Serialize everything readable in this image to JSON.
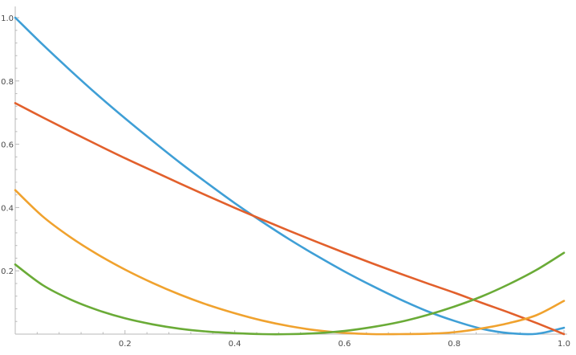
{
  "chart_data": {
    "type": "line",
    "title": "",
    "xlabel": "",
    "ylabel": "",
    "xlim": [
      0,
      1
    ],
    "ylim": [
      0,
      1
    ],
    "grid": false,
    "legend": "none",
    "x_ticks": [
      {
        "value": 0.2,
        "label": "0.2"
      },
      {
        "value": 0.4,
        "label": "0.4"
      },
      {
        "value": 0.6,
        "label": "0.6"
      },
      {
        "value": 0.8,
        "label": "0.8"
      },
      {
        "value": 1.0,
        "label": "1.0"
      }
    ],
    "y_ticks": [
      {
        "value": 0.2,
        "label": "0.2"
      },
      {
        "value": 0.4,
        "label": "0.4"
      },
      {
        "value": 0.6,
        "label": "0.6"
      },
      {
        "value": 0.8,
        "label": "0.8"
      },
      {
        "value": 1.0,
        "label": "1.0"
      }
    ],
    "x": [
      0,
      0.05,
      0.1,
      0.15,
      0.2,
      0.25,
      0.3,
      0.35,
      0.4,
      0.45,
      0.5,
      0.55,
      0.6,
      0.65,
      0.7,
      0.75,
      0.8,
      0.85,
      0.9,
      0.95,
      1.0
    ],
    "series": [
      {
        "color": "#3f9fd6",
        "values": [
          1.0,
          0.915,
          0.834,
          0.756,
          0.682,
          0.611,
          0.542,
          0.477,
          0.414,
          0.355,
          0.299,
          0.247,
          0.198,
          0.153,
          0.111,
          0.073,
          0.042,
          0.017,
          0.003,
          0.001,
          0.02
        ]
      },
      {
        "color": "#e2602c",
        "values": [
          0.73,
          0.685,
          0.641,
          0.598,
          0.556,
          0.516,
          0.476,
          0.437,
          0.399,
          0.362,
          0.326,
          0.291,
          0.257,
          0.224,
          0.192,
          0.161,
          0.131,
          0.099,
          0.068,
          0.035,
          0.0
        ]
      },
      {
        "color": "#f0a22e",
        "values": [
          0.455,
          0.372,
          0.307,
          0.252,
          0.204,
          0.162,
          0.125,
          0.093,
          0.066,
          0.043,
          0.025,
          0.012,
          0.004,
          0.0,
          0.0,
          0.001,
          0.006,
          0.018,
          0.035,
          0.06,
          0.105
        ]
      },
      {
        "color": "#6aab37",
        "values": [
          0.22,
          0.155,
          0.11,
          0.076,
          0.05,
          0.031,
          0.017,
          0.008,
          0.003,
          0.0,
          0.0,
          0.003,
          0.01,
          0.022,
          0.038,
          0.06,
          0.087,
          0.119,
          0.158,
          0.203,
          0.257
        ]
      }
    ]
  }
}
